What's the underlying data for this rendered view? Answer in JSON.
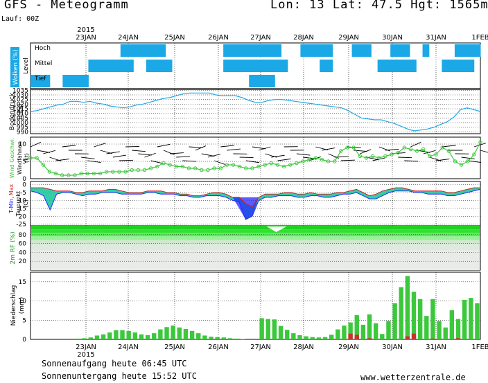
{
  "header": {
    "title": "GFS - Meteogramm",
    "location": "Lon: 13 Lat: 47.5 Hgt: 1565m",
    "run": "Lauf: 00Z"
  },
  "footer": {
    "sunrise": "Sonnenaufgang heute 06:45 UTC",
    "sunset": "Sonnenuntergang heute 15:52 UTC",
    "source": "www.wetterzentrale.de"
  },
  "colors": {
    "cloud": "#1ba8e6",
    "pressure": "#1ba8e6",
    "wind": "#3cc83c",
    "tmax": "#d11f1f",
    "tmin": "#2424ff",
    "dewpoint": "#1ba8e6",
    "fill_teal": "#1fc8a0",
    "precip": "#3cc83c",
    "precip_conv": "#c83232"
  },
  "chart_data": [
    {
      "type": "heatmap",
      "panel": "Wolken",
      "ylabel": "Wolken (%)",
      "levels": [
        "Hoch",
        "Mittel",
        "Tief"
      ],
      "level_axis_label": "Level",
      "x": [
        "23JAN",
        "24JAN",
        "25JAN",
        "26JAN",
        "27JAN",
        "28JAN",
        "29JAN",
        "30JAN",
        "31JAN",
        "1FEB"
      ],
      "year_label": "2015"
    },
    {
      "type": "line",
      "panel": "Bodendruck",
      "ylabel": "Bodendruck (hPa)",
      "y_ticks": [
        1035,
        1030,
        1025,
        1020,
        1015,
        1010,
        1005,
        1000,
        995,
        990
      ],
      "ylim": [
        988,
        1036
      ],
      "series": [
        {
          "values": [
            1012,
            1013,
            1015,
            1017,
            1019,
            1020,
            1023,
            1023,
            1022,
            1023,
            1021,
            1020,
            1018,
            1017,
            1016,
            1017,
            1019,
            1020,
            1022,
            1024,
            1026,
            1027,
            1029,
            1031,
            1032,
            1032,
            1032,
            1032,
            1030,
            1029,
            1029,
            1029,
            1027,
            1024,
            1022,
            1022,
            1024,
            1025,
            1025,
            1024,
            1023,
            1022,
            1021,
            1020,
            1019,
            1018,
            1017,
            1016,
            1013,
            1009,
            1005,
            1004,
            1003,
            1003,
            1001,
            999,
            996,
            993,
            991,
            992,
            993,
            995,
            998,
            1001,
            1006,
            1014,
            1016,
            1014,
            1012
          ]
        }
      ]
    },
    {
      "type": "line",
      "panel": "Wind",
      "ylabel": "Wind Geschwi. Windfahnen (kt)",
      "y_ticks": [
        10,
        5,
        0
      ],
      "ylim": [
        0,
        12
      ],
      "series": [
        {
          "values": [
            6,
            6,
            4,
            2,
            1.5,
            1,
            1,
            1,
            1.5,
            1.5,
            1.5,
            1.5,
            2,
            2,
            2,
            2,
            2.5,
            2.5,
            2.5,
            3,
            3.5,
            4.5,
            4,
            3.5,
            3.5,
            3,
            3,
            2.5,
            2.5,
            3,
            3,
            4,
            4,
            3.5,
            3,
            3,
            3.5,
            4,
            4.5,
            4,
            3.5,
            4,
            4.5,
            5,
            5.5,
            6,
            5.5,
            5,
            5,
            8,
            9,
            9,
            6.5,
            6,
            6.5,
            6,
            6.5,
            7,
            7.5,
            9,
            8.5,
            8,
            8.5,
            6.5,
            7,
            9,
            8,
            5,
            4,
            5,
            7,
            10.5
          ]
        }
      ]
    },
    {
      "type": "area",
      "panel": "Temperatur",
      "ylabel": "T-Min, Max Taupunkt (C)",
      "y_ticks": [
        0,
        -5,
        -10,
        -15,
        -20,
        -25
      ],
      "ylim": [
        -26,
        2
      ],
      "series": [
        {
          "name": "Max",
          "values": [
            -2,
            -2,
            -2,
            -3,
            -4,
            -4,
            -4,
            -5,
            -5,
            -4,
            -4,
            -4,
            -3,
            -3,
            -4,
            -5,
            -5,
            -5,
            -4,
            -4,
            -4,
            -5,
            -5,
            -6,
            -6,
            -7,
            -7,
            -6,
            -5,
            -5,
            -6,
            -8,
            -8,
            -12,
            -14,
            -8,
            -6,
            -6,
            -6,
            -5,
            -5,
            -6,
            -6,
            -5,
            -6,
            -6,
            -6,
            -5,
            -5,
            -4,
            -3,
            -5,
            -7,
            -6,
            -4,
            -3,
            -2,
            -2,
            -3,
            -4,
            -4,
            -4,
            -4,
            -4,
            -5,
            -5,
            -4,
            -3,
            -2,
            -2
          ]
        },
        {
          "name": "Min",
          "values": [
            -4,
            -5,
            -7,
            -16,
            -6,
            -5,
            -5,
            -6,
            -7,
            -6,
            -6,
            -5,
            -5,
            -5,
            -6,
            -6,
            -6,
            -6,
            -5,
            -5,
            -6,
            -6,
            -6,
            -7,
            -7,
            -8,
            -8,
            -7,
            -7,
            -7,
            -8,
            -10,
            -11,
            -22,
            -20,
            -10,
            -8,
            -8,
            -7,
            -7,
            -7,
            -8,
            -8,
            -7,
            -7,
            -8,
            -8,
            -7,
            -6,
            -6,
            -5,
            -7,
            -9,
            -9,
            -7,
            -5,
            -4,
            -4,
            -4,
            -5,
            -5,
            -6,
            -6,
            -6,
            -7,
            -7,
            -6,
            -5,
            -4,
            -3
          ]
        }
      ]
    },
    {
      "type": "area",
      "panel": "Relative Feuchte",
      "ylabel": "2m RF (%)",
      "y_ticks": [
        80,
        60,
        40,
        20
      ],
      "ylim": [
        0,
        100
      ]
    },
    {
      "type": "bar",
      "panel": "Niederschlag",
      "ylabel": "Niederschlag (mm)",
      "y_ticks": [
        15,
        10,
        5,
        0
      ],
      "ylim": [
        0,
        17.5
      ],
      "x_labels": [
        "23JAN",
        "24JAN",
        "25JAN",
        "26JAN",
        "27JAN",
        "28JAN",
        "29JAN",
        "30JAN",
        "31JAN",
        "1FEB"
      ],
      "year_label": "2015",
      "series": [
        {
          "name": "total",
          "values": [
            0,
            0,
            0,
            0,
            0,
            0,
            0,
            0.2,
            0.3,
            0.5,
            1,
            1.3,
            1.8,
            2.4,
            2.4,
            2.2,
            1.8,
            1.3,
            1.1,
            1.6,
            2.6,
            3.2,
            3.6,
            3.1,
            2.7,
            2.2,
            1.6,
            1,
            0.7,
            0.6,
            0.5,
            0.3,
            0.2,
            0.1,
            0,
            0,
            5.5,
            5.3,
            5.2,
            3.5,
            2.5,
            1.6,
            1.1,
            0.8,
            0.6,
            0.5,
            0.6,
            1.2,
            2.6,
            3.6,
            4.4,
            6.3,
            3.8,
            6.5,
            4.2,
            1.4,
            4.8,
            9.4,
            13.6,
            16.5,
            12.4,
            10.5,
            6.1,
            10.5,
            4.8,
            3.1,
            7.6,
            5.3,
            10.3,
            10.8,
            9.4
          ]
        },
        {
          "name": "conv",
          "values": [
            0,
            0,
            0,
            0,
            0,
            0,
            0,
            0,
            0,
            0,
            0,
            0,
            0,
            0,
            0,
            0,
            0,
            0,
            0,
            0,
            0,
            0,
            0,
            0,
            0,
            0,
            0,
            0,
            0,
            0,
            0,
            0,
            0,
            0,
            0,
            0,
            0,
            0,
            0,
            0,
            0,
            0,
            0,
            0,
            0,
            0,
            0,
            0,
            0,
            0,
            1.5,
            1.2,
            0,
            0.3,
            0,
            0,
            0,
            0,
            0,
            0.8,
            1.5,
            0,
            0,
            0.2,
            0,
            0,
            0,
            0.3,
            0,
            0,
            0
          ]
        }
      ]
    }
  ]
}
